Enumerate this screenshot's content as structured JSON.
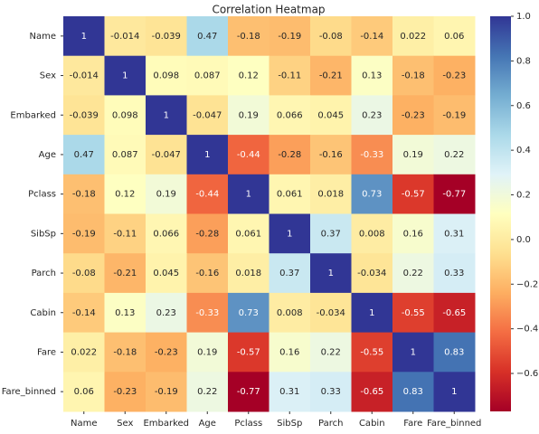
{
  "chart_data": {
    "type": "heatmap",
    "title": "Correlation Heatmap",
    "categories": [
      "Name",
      "Sex",
      "Embarked",
      "Age",
      "Pclass",
      "SibSp",
      "Parch",
      "Cabin",
      "Fare",
      "Fare_binned"
    ],
    "matrix": [
      [
        1,
        -0.014,
        -0.039,
        0.47,
        -0.18,
        -0.19,
        -0.08,
        -0.14,
        0.022,
        0.06
      ],
      [
        -0.014,
        1,
        0.098,
        0.087,
        0.12,
        -0.11,
        -0.21,
        0.13,
        -0.18,
        -0.23
      ],
      [
        -0.039,
        0.098,
        1,
        -0.047,
        0.19,
        0.066,
        0.045,
        0.23,
        -0.23,
        -0.19
      ],
      [
        0.47,
        0.087,
        -0.047,
        1,
        -0.44,
        -0.28,
        -0.16,
        -0.33,
        0.19,
        0.22
      ],
      [
        -0.18,
        0.12,
        0.19,
        -0.44,
        1,
        0.061,
        0.018,
        0.73,
        -0.57,
        -0.77
      ],
      [
        -0.19,
        -0.11,
        0.066,
        -0.28,
        0.061,
        1,
        0.37,
        0.008,
        0.16,
        0.31
      ],
      [
        -0.08,
        -0.21,
        0.045,
        -0.16,
        0.018,
        0.37,
        1,
        -0.034,
        0.22,
        0.33
      ],
      [
        -0.14,
        0.13,
        0.23,
        -0.33,
        0.73,
        0.008,
        -0.034,
        1,
        -0.55,
        -0.65
      ],
      [
        0.022,
        -0.18,
        -0.23,
        0.19,
        -0.57,
        0.16,
        0.22,
        -0.55,
        1,
        0.83
      ],
      [
        0.06,
        -0.23,
        -0.19,
        0.22,
        -0.77,
        0.31,
        0.33,
        -0.65,
        0.83,
        1
      ]
    ],
    "colormap": [
      "#a50026",
      "#d73027",
      "#f46d43",
      "#fdae61",
      "#fee090",
      "#ffffbf",
      "#e0f3f8",
      "#abd9e9",
      "#74add1",
      "#4575b4",
      "#313695"
    ],
    "zlim": [
      -0.77,
      1
    ],
    "zticks": [
      {
        "value": -0.6,
        "label": "−0.6"
      },
      {
        "value": -0.4,
        "label": "−0.4"
      },
      {
        "value": -0.2,
        "label": "−0.2"
      },
      {
        "value": 0,
        "label": "0.0"
      },
      0.2,
      0.4,
      0.6,
      0.8,
      {
        "value": 1,
        "label": "1.0"
      }
    ]
  }
}
